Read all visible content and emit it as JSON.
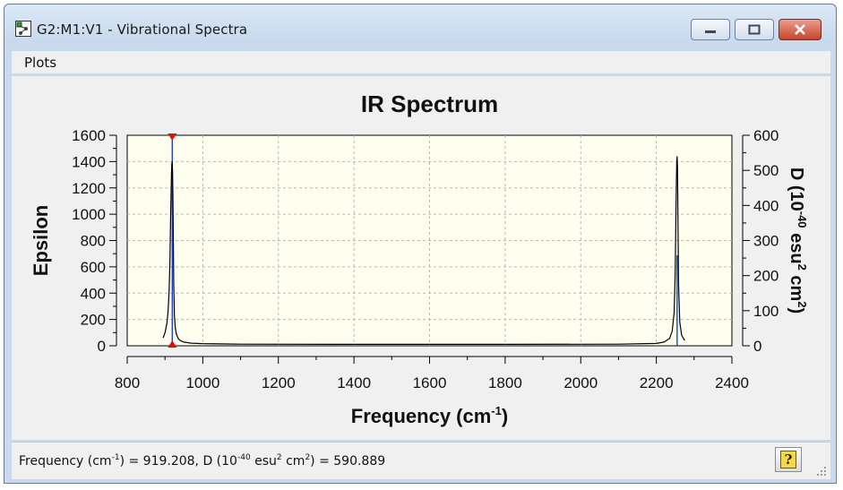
{
  "window": {
    "title": "G2:M1:V1 - Vibrational Spectra",
    "icon": "molecule-app-icon",
    "controls": [
      "minimize-icon",
      "maximize-icon",
      "close-icon"
    ]
  },
  "menu": {
    "items": [
      "Plots"
    ]
  },
  "status": {
    "freq_prefix": "Frequency (cm",
    "freq_sup": "-1",
    "freq_mid": ") = 919.208, D (10",
    "d_sup1": "-40",
    "d_unit": " esu",
    "d_sup2": "2",
    "d_unit2": " cm",
    "d_sup3": "2",
    "d_value": ") = 590.889",
    "help_icon": "help-question-icon"
  },
  "chart_data": {
    "type": "line",
    "title": "IR Spectrum",
    "xlabel": "Frequency (cm",
    "xlabel_sup": "-1",
    "xlabel_end": ")",
    "ylabel": "Epsilon",
    "y2label_parts": [
      "D (10",
      "-40",
      " esu",
      "2",
      " cm",
      "2",
      ")"
    ],
    "xlim": [
      800,
      2400
    ],
    "ylim": [
      0,
      1600
    ],
    "y2lim": [
      0,
      600
    ],
    "xticks": [
      800,
      1000,
      1200,
      1400,
      1600,
      1800,
      2000,
      2200,
      2400
    ],
    "yticks": [
      0,
      200,
      400,
      600,
      800,
      1000,
      1200,
      1400,
      1600
    ],
    "y2ticks": [
      0,
      100,
      200,
      300,
      400,
      500,
      600
    ],
    "grid": true,
    "series": [
      {
        "x": [
          895,
          900,
          905,
          908,
          911,
          913,
          915,
          917,
          918,
          919,
          920,
          921,
          922,
          923,
          925,
          927,
          930,
          935,
          940,
          950,
          970,
          1000,
          1100,
          1400,
          1800,
          2100,
          2200,
          2220,
          2235,
          2242,
          2247,
          2250,
          2252,
          2254,
          2255,
          2256,
          2257,
          2259,
          2262,
          2267,
          2275
        ],
        "values": [
          60,
          100,
          170,
          260,
          420,
          650,
          1000,
          1300,
          1380,
          1400,
          1330,
          1150,
          800,
          480,
          230,
          140,
          90,
          55,
          40,
          28,
          20,
          16,
          12,
          11,
          11,
          12,
          18,
          28,
          55,
          110,
          250,
          550,
          1050,
          1400,
          1440,
          1350,
          1000,
          450,
          180,
          80,
          40
        ]
      }
    ],
    "sticks": [
      {
        "x": 919.208,
        "d": 590.889
      },
      {
        "x": 2255,
        "d": 258
      }
    ],
    "marker_x": 919.208
  }
}
